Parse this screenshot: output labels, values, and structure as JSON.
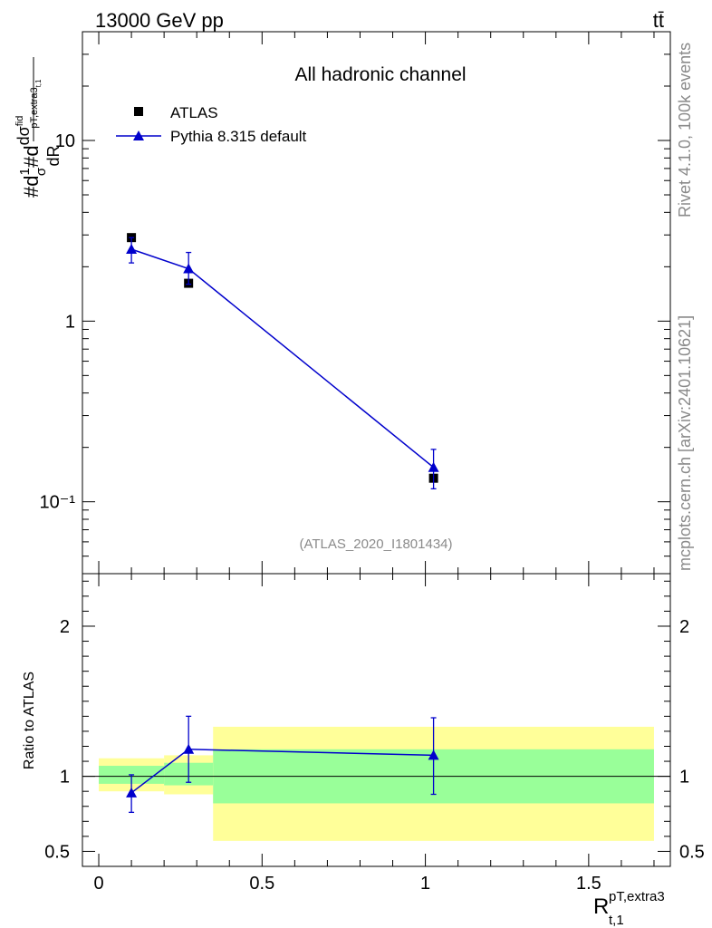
{
  "header": {
    "energy_label": "13000 GeV pp",
    "process_label": "tt̄"
  },
  "side": {
    "rivet_label": "Rivet 4.1.0,  100k events",
    "mcplots_label": "mcplots.cern.ch [arXiv:2401.10621]"
  },
  "chart_data": [
    {
      "type": "scatter",
      "title": "All hadronic channel",
      "analysis_label": "(ATLAS_2020_I1801434)",
      "ylabel": "#d1/σ#d dσfid/dR pT,extra3 t,1",
      "yscale": "log",
      "ylim": [
        0.04,
        40
      ],
      "xlim": [
        -0.05,
        1.75
      ],
      "y_ticks": [
        {
          "label": "10⁻¹"
        },
        {
          "label": "1"
        },
        {
          "label": "10"
        }
      ],
      "legend": "top-left",
      "series": [
        {
          "name": "ATLAS",
          "marker": "square",
          "color": "#000000",
          "x": [
            0.1,
            0.275,
            1.025
          ],
          "y": [
            2.9,
            1.62,
            0.135
          ]
        },
        {
          "name": "Pythia 8.315 default",
          "marker": "triangle",
          "color": "#0000cc",
          "x": [
            0.1,
            0.275,
            1.025
          ],
          "y": [
            2.5,
            1.95,
            0.155
          ],
          "y_err_low": [
            2.1,
            1.6,
            0.118
          ],
          "y_err_high": [
            2.9,
            2.4,
            0.195
          ]
        }
      ]
    },
    {
      "type": "line",
      "ylabel": "Ratio to ATLAS",
      "xlabel": "R pT,extra3 t,1",
      "ylim": [
        0.4,
        2.35
      ],
      "xlim": [
        -0.05,
        1.75
      ],
      "x_ticks": [
        {
          "value": 0,
          "label": "0"
        },
        {
          "value": 0.5,
          "label": "0.5"
        },
        {
          "value": 1,
          "label": "1"
        },
        {
          "value": 1.5,
          "label": "1.5"
        }
      ],
      "y_ticks": [
        {
          "value": 0.5,
          "label": "0.5"
        },
        {
          "value": 1,
          "label": "1"
        },
        {
          "value": 2,
          "label": "2"
        }
      ],
      "bands": [
        {
          "x0": 0.0,
          "x1": 0.2,
          "y_inner": [
            0.95,
            1.07
          ],
          "y_outer": [
            0.9,
            1.12
          ]
        },
        {
          "x0": 0.2,
          "x1": 0.35,
          "y_inner": [
            0.94,
            1.09
          ],
          "y_outer": [
            0.88,
            1.14
          ]
        },
        {
          "x0": 0.35,
          "x1": 1.7,
          "y_inner": [
            0.82,
            1.18
          ],
          "y_outer": [
            0.57,
            1.33
          ]
        }
      ],
      "series": [
        {
          "name": "Pythia 8.315 default",
          "color": "#0000cc",
          "x": [
            0.1,
            0.275,
            1.025
          ],
          "y": [
            0.89,
            1.18,
            1.14
          ],
          "y_err_low": [
            0.76,
            0.96,
            0.88
          ],
          "y_err_high": [
            1.01,
            1.4,
            1.39
          ]
        }
      ]
    }
  ]
}
